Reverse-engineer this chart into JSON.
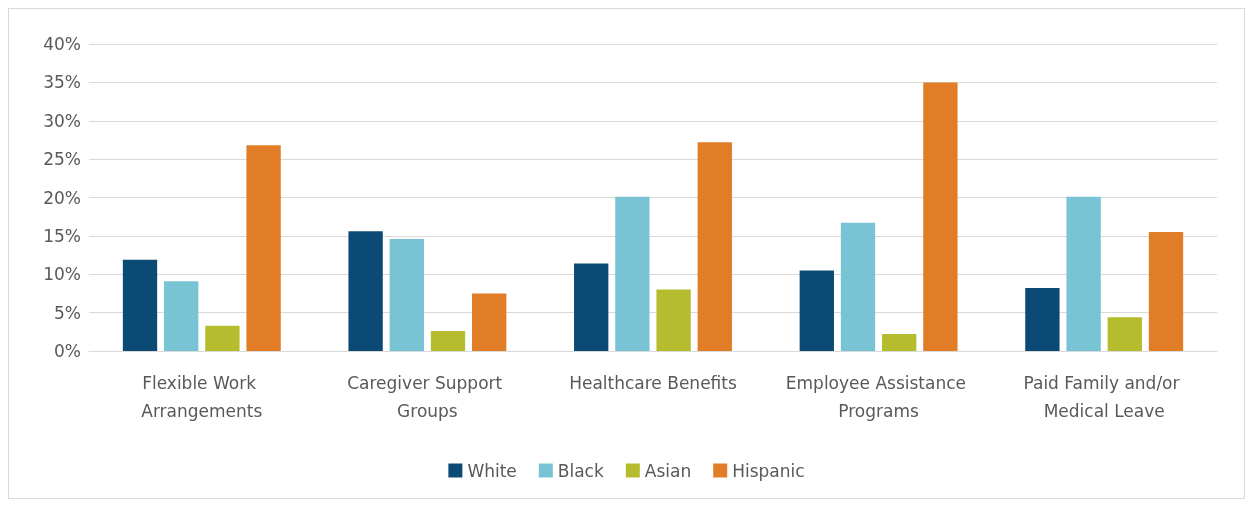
{
  "chart_data": {
    "type": "bar",
    "categories": [
      "Flexible Work Arrangements",
      "Caregiver Support Groups",
      "Healthcare Benefits",
      "Employee Assistance Programs",
      "Paid Family and/or Medical Leave"
    ],
    "series": [
      {
        "name": "White",
        "color": "#0b4a74",
        "values": [
          11.9,
          15.6,
          11.4,
          10.5,
          8.2
        ]
      },
      {
        "name": "Black",
        "color": "#78c4d4",
        "values": [
          9.1,
          14.6,
          20.1,
          16.7,
          20.1
        ]
      },
      {
        "name": "Asian",
        "color": "#b5bd2f",
        "values": [
          3.3,
          2.6,
          8.0,
          2.2,
          4.4
        ]
      },
      {
        "name": "Hispanic",
        "color": "#e07d26",
        "values": [
          26.8,
          7.5,
          27.2,
          35.0,
          15.5
        ]
      }
    ],
    "ylim": [
      0,
      40
    ],
    "yticks": [
      {
        "value": 0,
        "label": "0%"
      },
      {
        "value": 5,
        "label": "5%"
      },
      {
        "value": 10,
        "label": "10%"
      },
      {
        "value": 15,
        "label": "15%"
      },
      {
        "value": 20,
        "label": "20%"
      },
      {
        "value": 25,
        "label": "25%"
      },
      {
        "value": 30,
        "label": "30%"
      },
      {
        "value": 35,
        "label": "35%"
      },
      {
        "value": 40,
        "label": "40%"
      }
    ],
    "grid": "y",
    "legend": "bottom"
  }
}
